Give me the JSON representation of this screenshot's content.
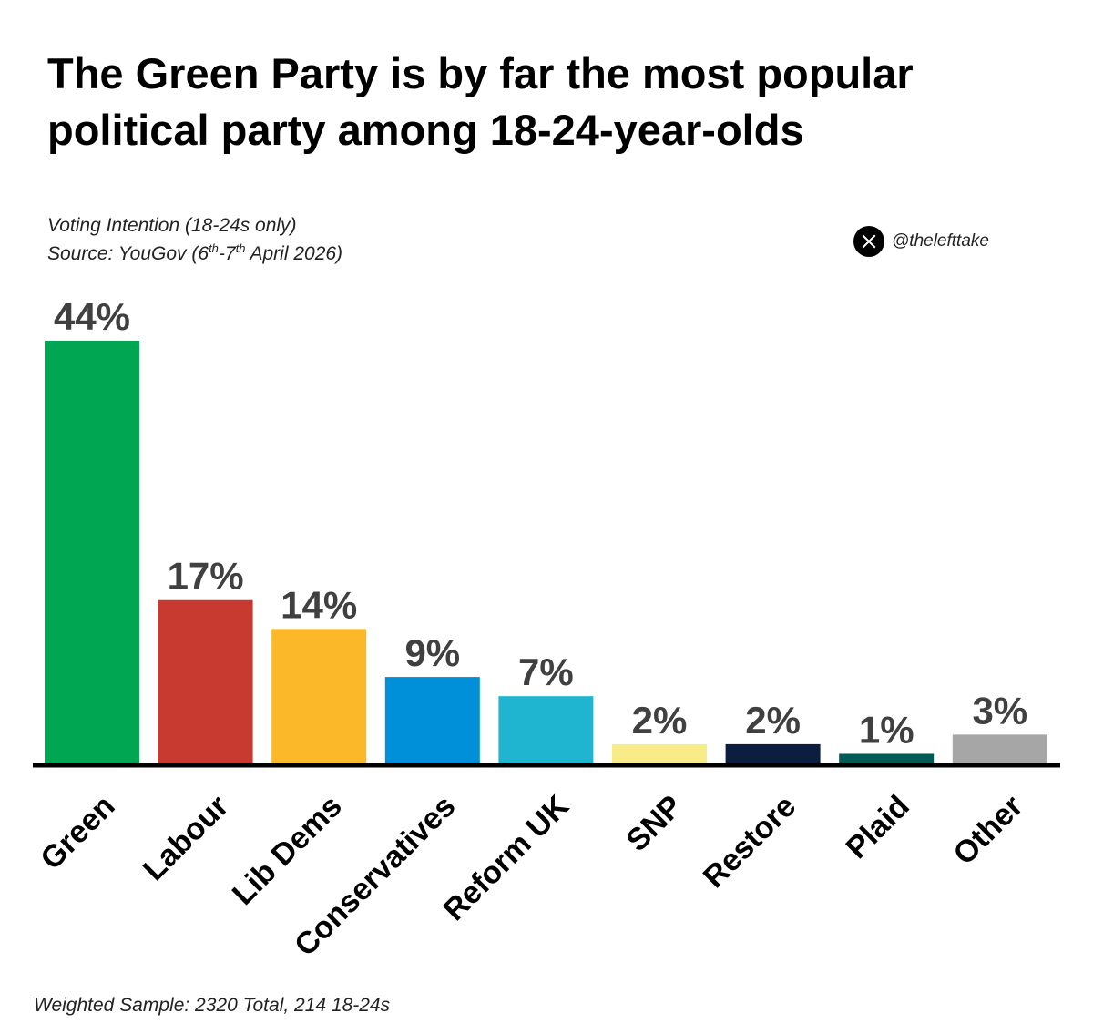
{
  "chart_data": {
    "type": "bar",
    "title": "The Green Party is by far the most popular political party among 18-24-year-olds",
    "title_lines": [
      "The Green Party is by far the most popular",
      "political party among 18-24-year-olds"
    ],
    "subtitle": "Voting Intention (18-24s only)",
    "source_prefix": "Source: YouGov (6",
    "source_sup1": "th",
    "source_mid": "-7",
    "source_sup2": "th",
    "source_suffix": " April 2026)",
    "categories": [
      "Green",
      "Labour",
      "Lib Dems",
      "Conservatives",
      "Reform UK",
      "SNP",
      "Restore",
      "Plaid",
      "Other"
    ],
    "values": [
      44,
      17,
      14,
      9,
      7,
      2,
      2,
      1,
      3
    ],
    "value_labels": [
      "44%",
      "17%",
      "14%",
      "9%",
      "7%",
      "2%",
      "2%",
      "1%",
      "3%"
    ],
    "colors": [
      "#00A651",
      "#C8392F",
      "#FBB829",
      "#0090D9",
      "#1FB5D0",
      "#F7EC87",
      "#0C1E3F",
      "#005B54",
      "#A6A6A6"
    ],
    "unit": "%",
    "ylim": [
      0,
      44
    ],
    "xlabel": "",
    "ylabel": "",
    "grid": false,
    "footer": "Weighted Sample: 2320 Total, 214 18-24s"
  },
  "branding": {
    "handle": "@thelefttake",
    "icon": "x-logo-icon"
  }
}
